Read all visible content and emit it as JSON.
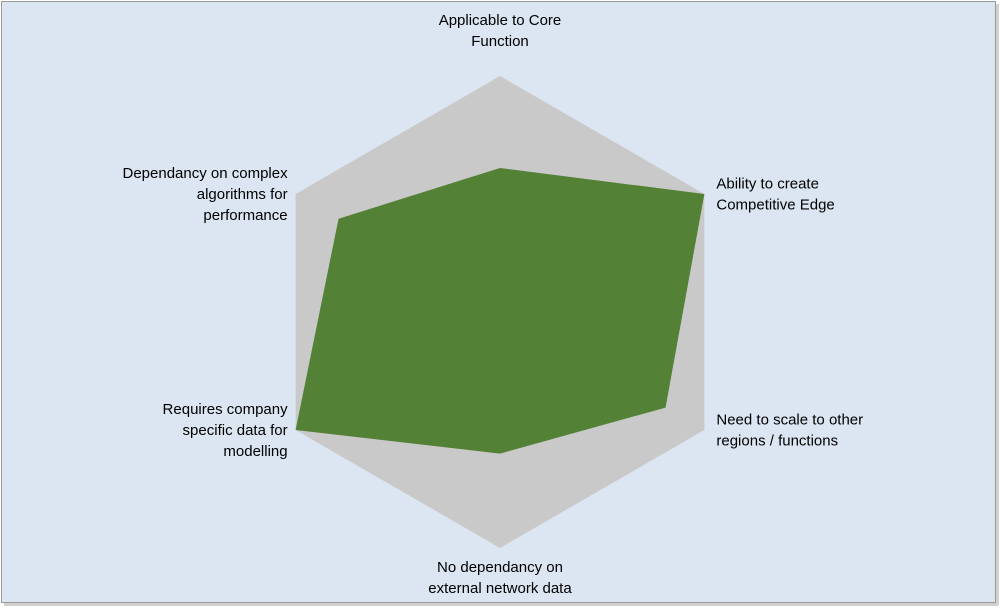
{
  "chart_data": {
    "type": "radar",
    "categories": [
      "Applicable to Core\nFunction",
      "Ability to create\nCompetitive Edge",
      "Need to scale to other\nregions / functions",
      "No dependancy on\nexternal network data",
      "Requires company\nspecific data for\nmodelling",
      "Dependancy on complex\nalgorithms for\nperformance"
    ],
    "series": [
      {
        "color": "#538135",
        "values": [
          0.61,
          1.0,
          0.81,
          0.6,
          1.0,
          0.79
        ]
      }
    ],
    "rlim": [
      0,
      1
    ],
    "background_color": "#c9c9c9"
  }
}
